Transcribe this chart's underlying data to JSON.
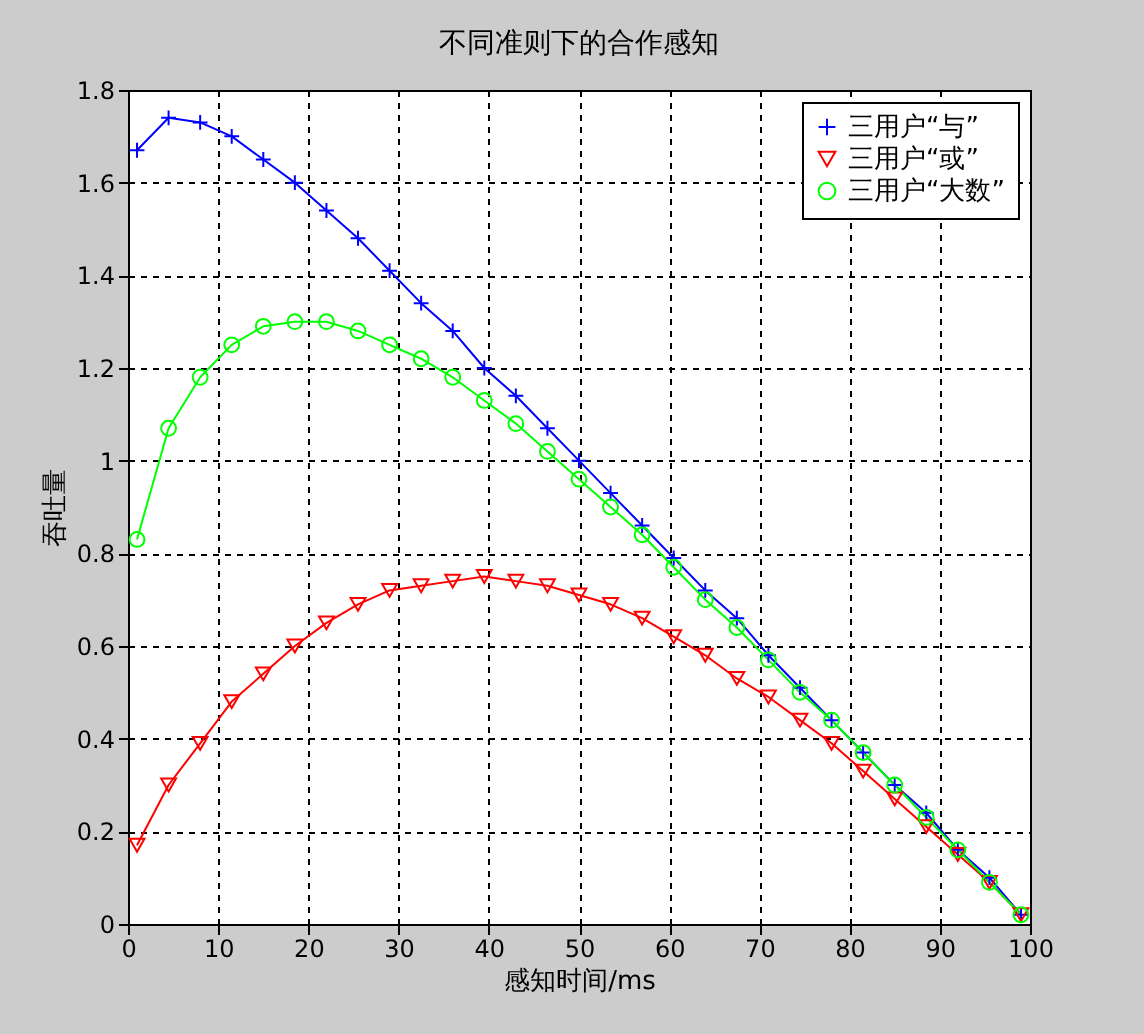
{
  "chart_data": {
    "type": "line",
    "title": "不同准则下的合作感知",
    "xlabel": "感知时间/ms",
    "ylabel": "吞吐量",
    "x": [
      1,
      4.5,
      8,
      11.5,
      15,
      18.5,
      22,
      25.5,
      29,
      32.5,
      36,
      39.5,
      43,
      46.5,
      50,
      53.5,
      57,
      60.5,
      64,
      67.5,
      71,
      74.5,
      78,
      81.5,
      85,
      88.5,
      92,
      95.5,
      99
    ],
    "series": [
      {
        "name": "三用户“与”",
        "color": "#0000ff",
        "marker": "cross",
        "values": [
          1.67,
          1.74,
          1.73,
          1.7,
          1.65,
          1.6,
          1.54,
          1.48,
          1.41,
          1.34,
          1.28,
          1.2,
          1.14,
          1.07,
          1.0,
          0.93,
          0.86,
          0.79,
          0.72,
          0.66,
          0.58,
          0.51,
          0.44,
          0.37,
          0.3,
          0.24,
          0.16,
          0.1,
          0.02
        ]
      },
      {
        "name": "三用户“或”",
        "color": "#ff0000",
        "marker": "triangle",
        "values": [
          0.17,
          0.3,
          0.39,
          0.48,
          0.54,
          0.6,
          0.65,
          0.69,
          0.72,
          0.73,
          0.74,
          0.75,
          0.74,
          0.73,
          0.71,
          0.69,
          0.66,
          0.62,
          0.58,
          0.53,
          0.49,
          0.44,
          0.39,
          0.33,
          0.27,
          0.21,
          0.15,
          0.09,
          0.02
        ]
      },
      {
        "name": "三用户“大数”",
        "color": "#00ff00",
        "marker": "circle",
        "values": [
          0.83,
          1.07,
          1.18,
          1.25,
          1.29,
          1.3,
          1.3,
          1.28,
          1.25,
          1.22,
          1.18,
          1.13,
          1.08,
          1.02,
          0.96,
          0.9,
          0.84,
          0.77,
          0.7,
          0.64,
          0.57,
          0.5,
          0.44,
          0.37,
          0.3,
          0.23,
          0.16,
          0.09,
          0.02
        ]
      }
    ],
    "xlim": [
      0,
      100
    ],
    "xticks": [
      0,
      10,
      20,
      30,
      40,
      50,
      60,
      70,
      80,
      90,
      100
    ],
    "ylim": [
      0,
      1.8
    ],
    "yticks": [
      0,
      0.2,
      0.4,
      0.6,
      0.8,
      1,
      1.2,
      1.4,
      1.6,
      1.8
    ],
    "grid": true,
    "legend": "top right",
    "line_style": "solid"
  }
}
